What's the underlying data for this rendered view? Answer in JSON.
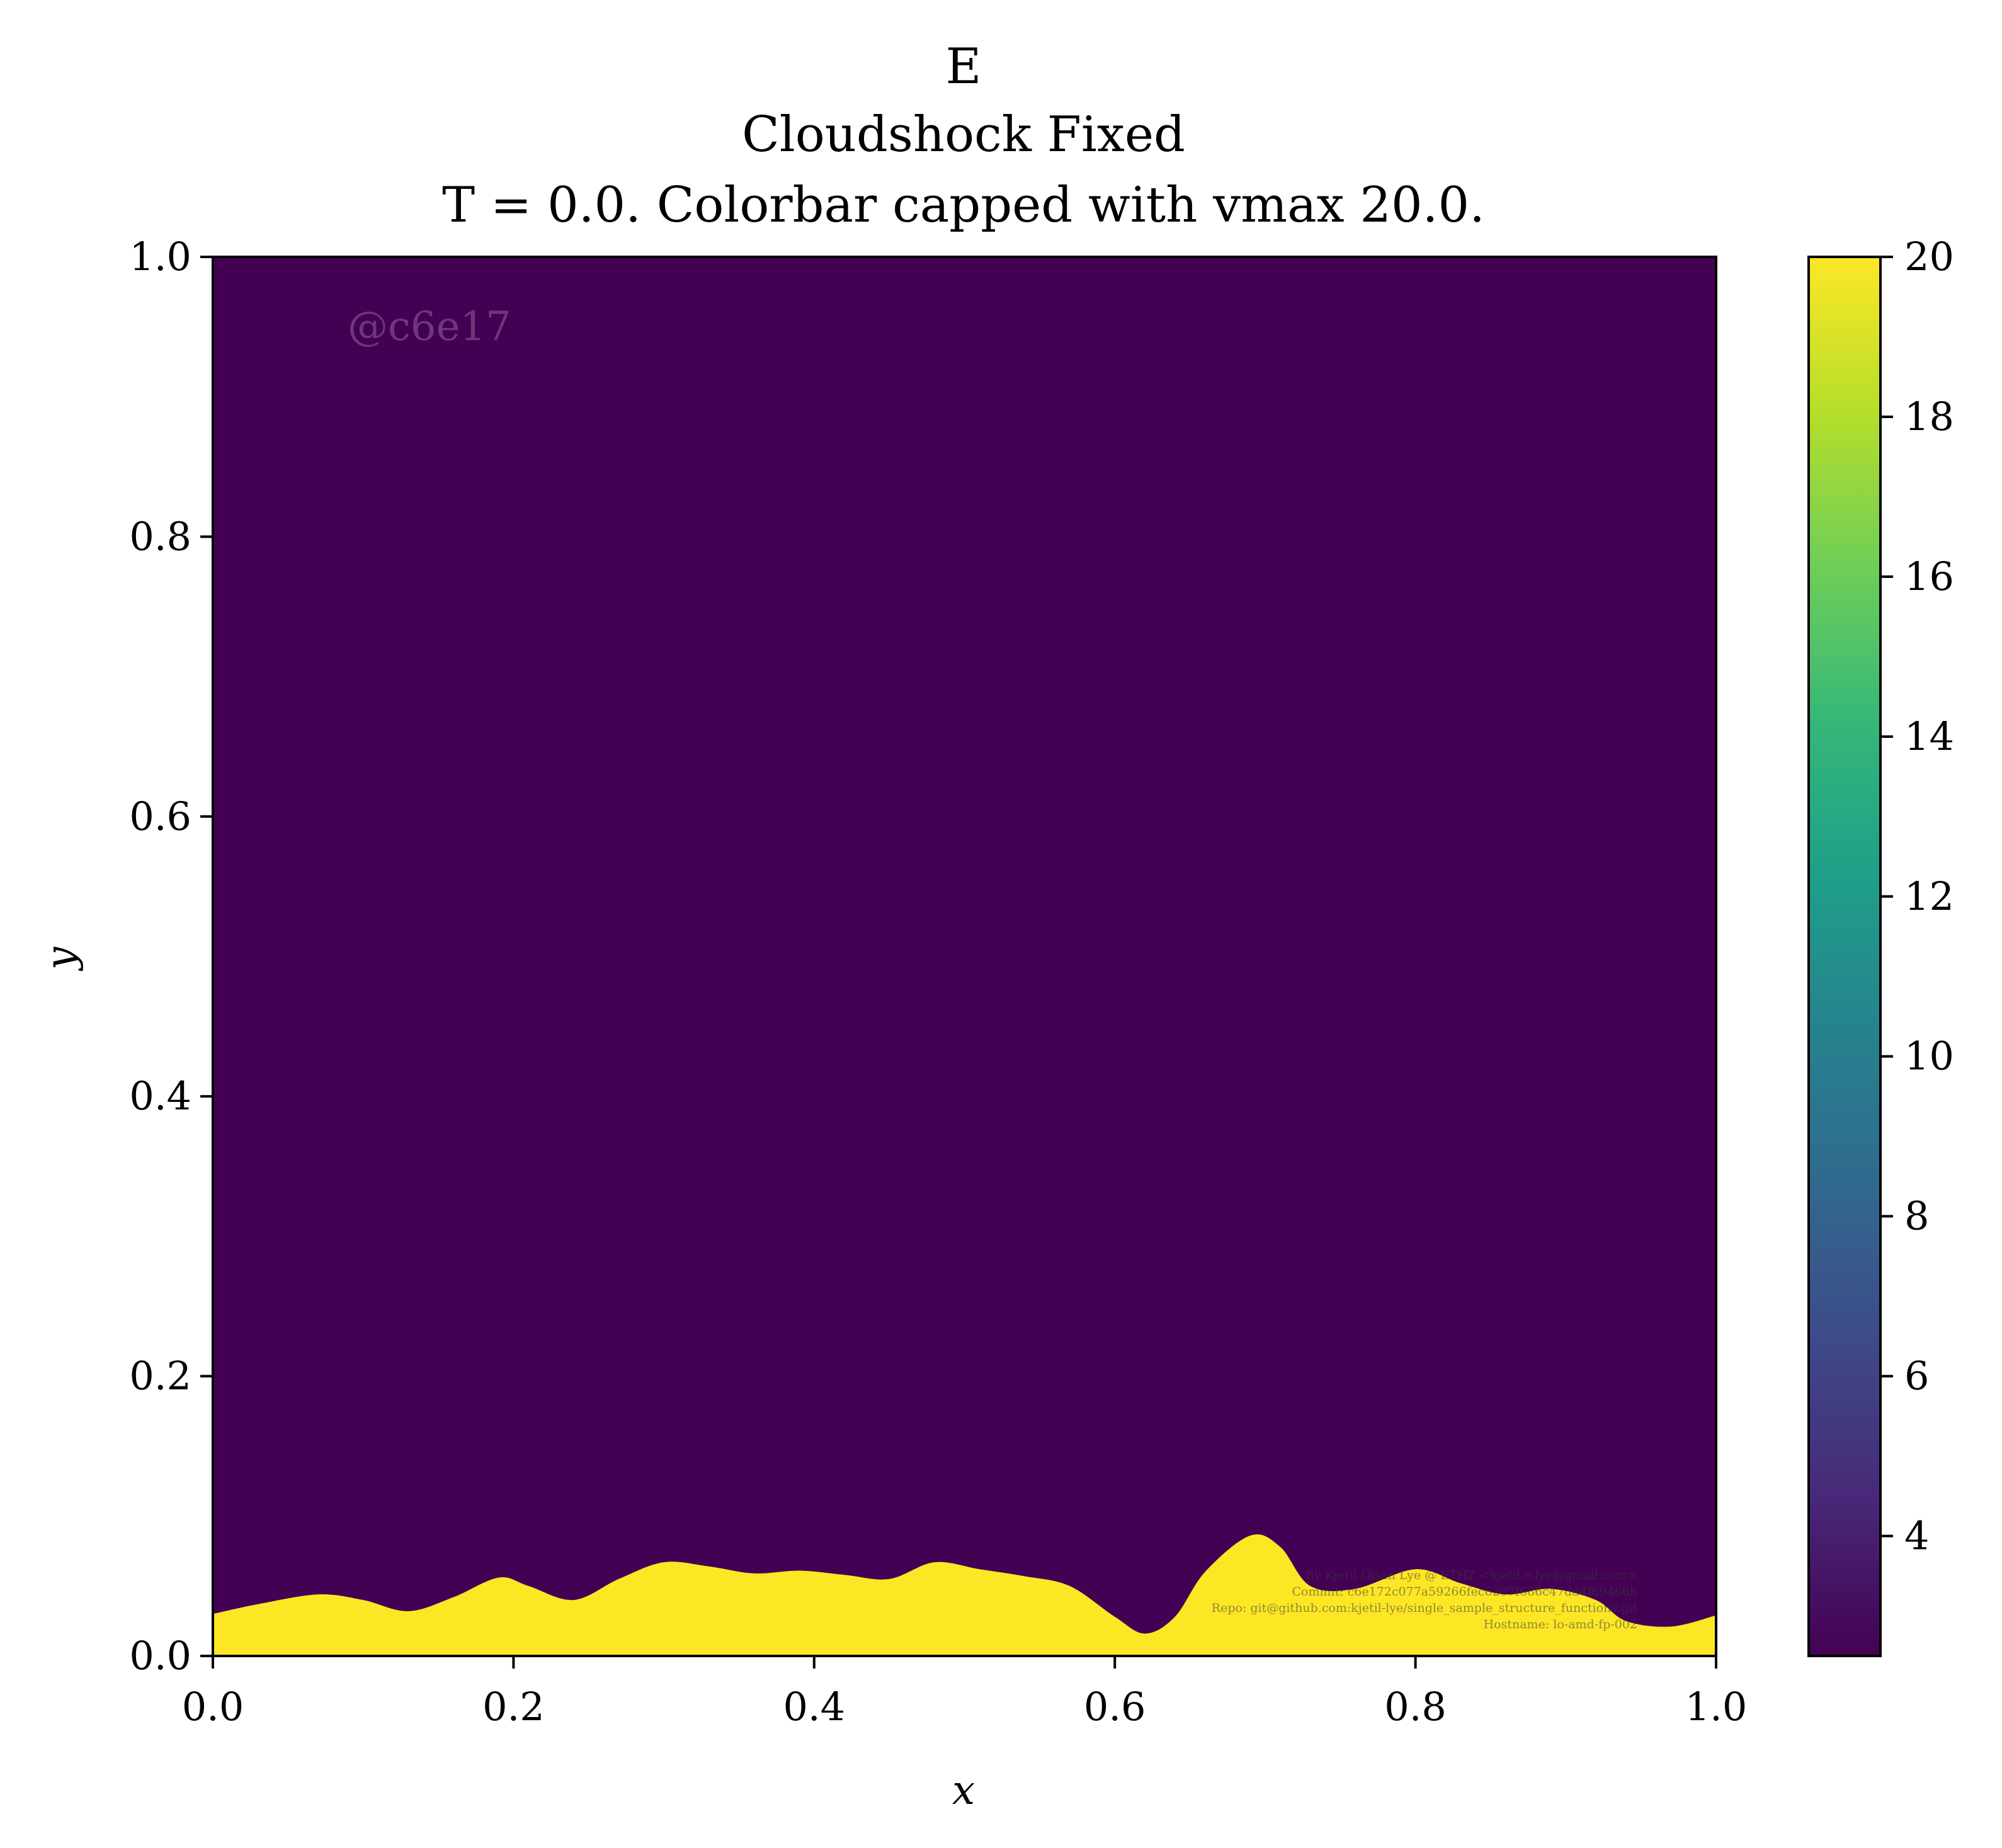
{
  "title_lines": [
    "E",
    "Cloudshock Fixed",
    "T = 0.0. Colorbar capped with vmax 20.0."
  ],
  "watermark": "@c6e17",
  "credits": [
    "By Kjetil Olsen Lye @ ETHZ <kjetil.o.lye@gmail.com>",
    "Commit: c6e172c077a59266fec6207f686c47dd4f69466b",
    "Repo: git@github.com:kjetil-lye/single_sample_structure_functions.git",
    "Hostname: lo-amd-fp-002"
  ],
  "colors": {
    "low": "#440154",
    "high": "#fde725",
    "viridis_stops": [
      "#440154",
      "#482878",
      "#3e4989",
      "#31688e",
      "#26828e",
      "#1f9e89",
      "#35b779",
      "#6ece58",
      "#b5de2b",
      "#fde725"
    ]
  },
  "chart_data": {
    "type": "heatmap",
    "title": "E",
    "xlabel": "x",
    "ylabel": "y",
    "xlim": [
      0.0,
      1.0
    ],
    "ylim": [
      0.0,
      1.0
    ],
    "x_ticks": [
      "0.0",
      "0.2",
      "0.4",
      "0.6",
      "0.8",
      "1.0"
    ],
    "y_ticks": [
      "0.0",
      "0.2",
      "0.4",
      "0.6",
      "0.8",
      "1.0"
    ],
    "colorbar": {
      "vmin": 2.5,
      "vmax": 20.0,
      "ticks": [
        "4",
        "6",
        "8",
        "10",
        "12",
        "14",
        "16",
        "18",
        "20"
      ],
      "colormap": "viridis"
    },
    "regions": [
      {
        "name": "upper region",
        "value": 2.5
      },
      {
        "name": "lower band",
        "value": 20.0
      }
    ],
    "interface": {
      "x": [
        0.0,
        0.03,
        0.07,
        0.1,
        0.13,
        0.16,
        0.19,
        0.21,
        0.24,
        0.27,
        0.3,
        0.33,
        0.36,
        0.39,
        0.42,
        0.45,
        0.48,
        0.51,
        0.54,
        0.57,
        0.6,
        0.62,
        0.64,
        0.66,
        0.69,
        0.71,
        0.73,
        0.76,
        0.8,
        0.83,
        0.86,
        0.89,
        0.92,
        0.94,
        0.97,
        1.0
      ],
      "y": [
        0.03,
        0.037,
        0.044,
        0.04,
        0.032,
        0.042,
        0.056,
        0.05,
        0.04,
        0.055,
        0.067,
        0.064,
        0.059,
        0.061,
        0.058,
        0.055,
        0.067,
        0.062,
        0.057,
        0.05,
        0.028,
        0.016,
        0.028,
        0.06,
        0.086,
        0.078,
        0.05,
        0.048,
        0.062,
        0.052,
        0.044,
        0.048,
        0.04,
        0.025,
        0.021,
        0.029
      ]
    }
  }
}
